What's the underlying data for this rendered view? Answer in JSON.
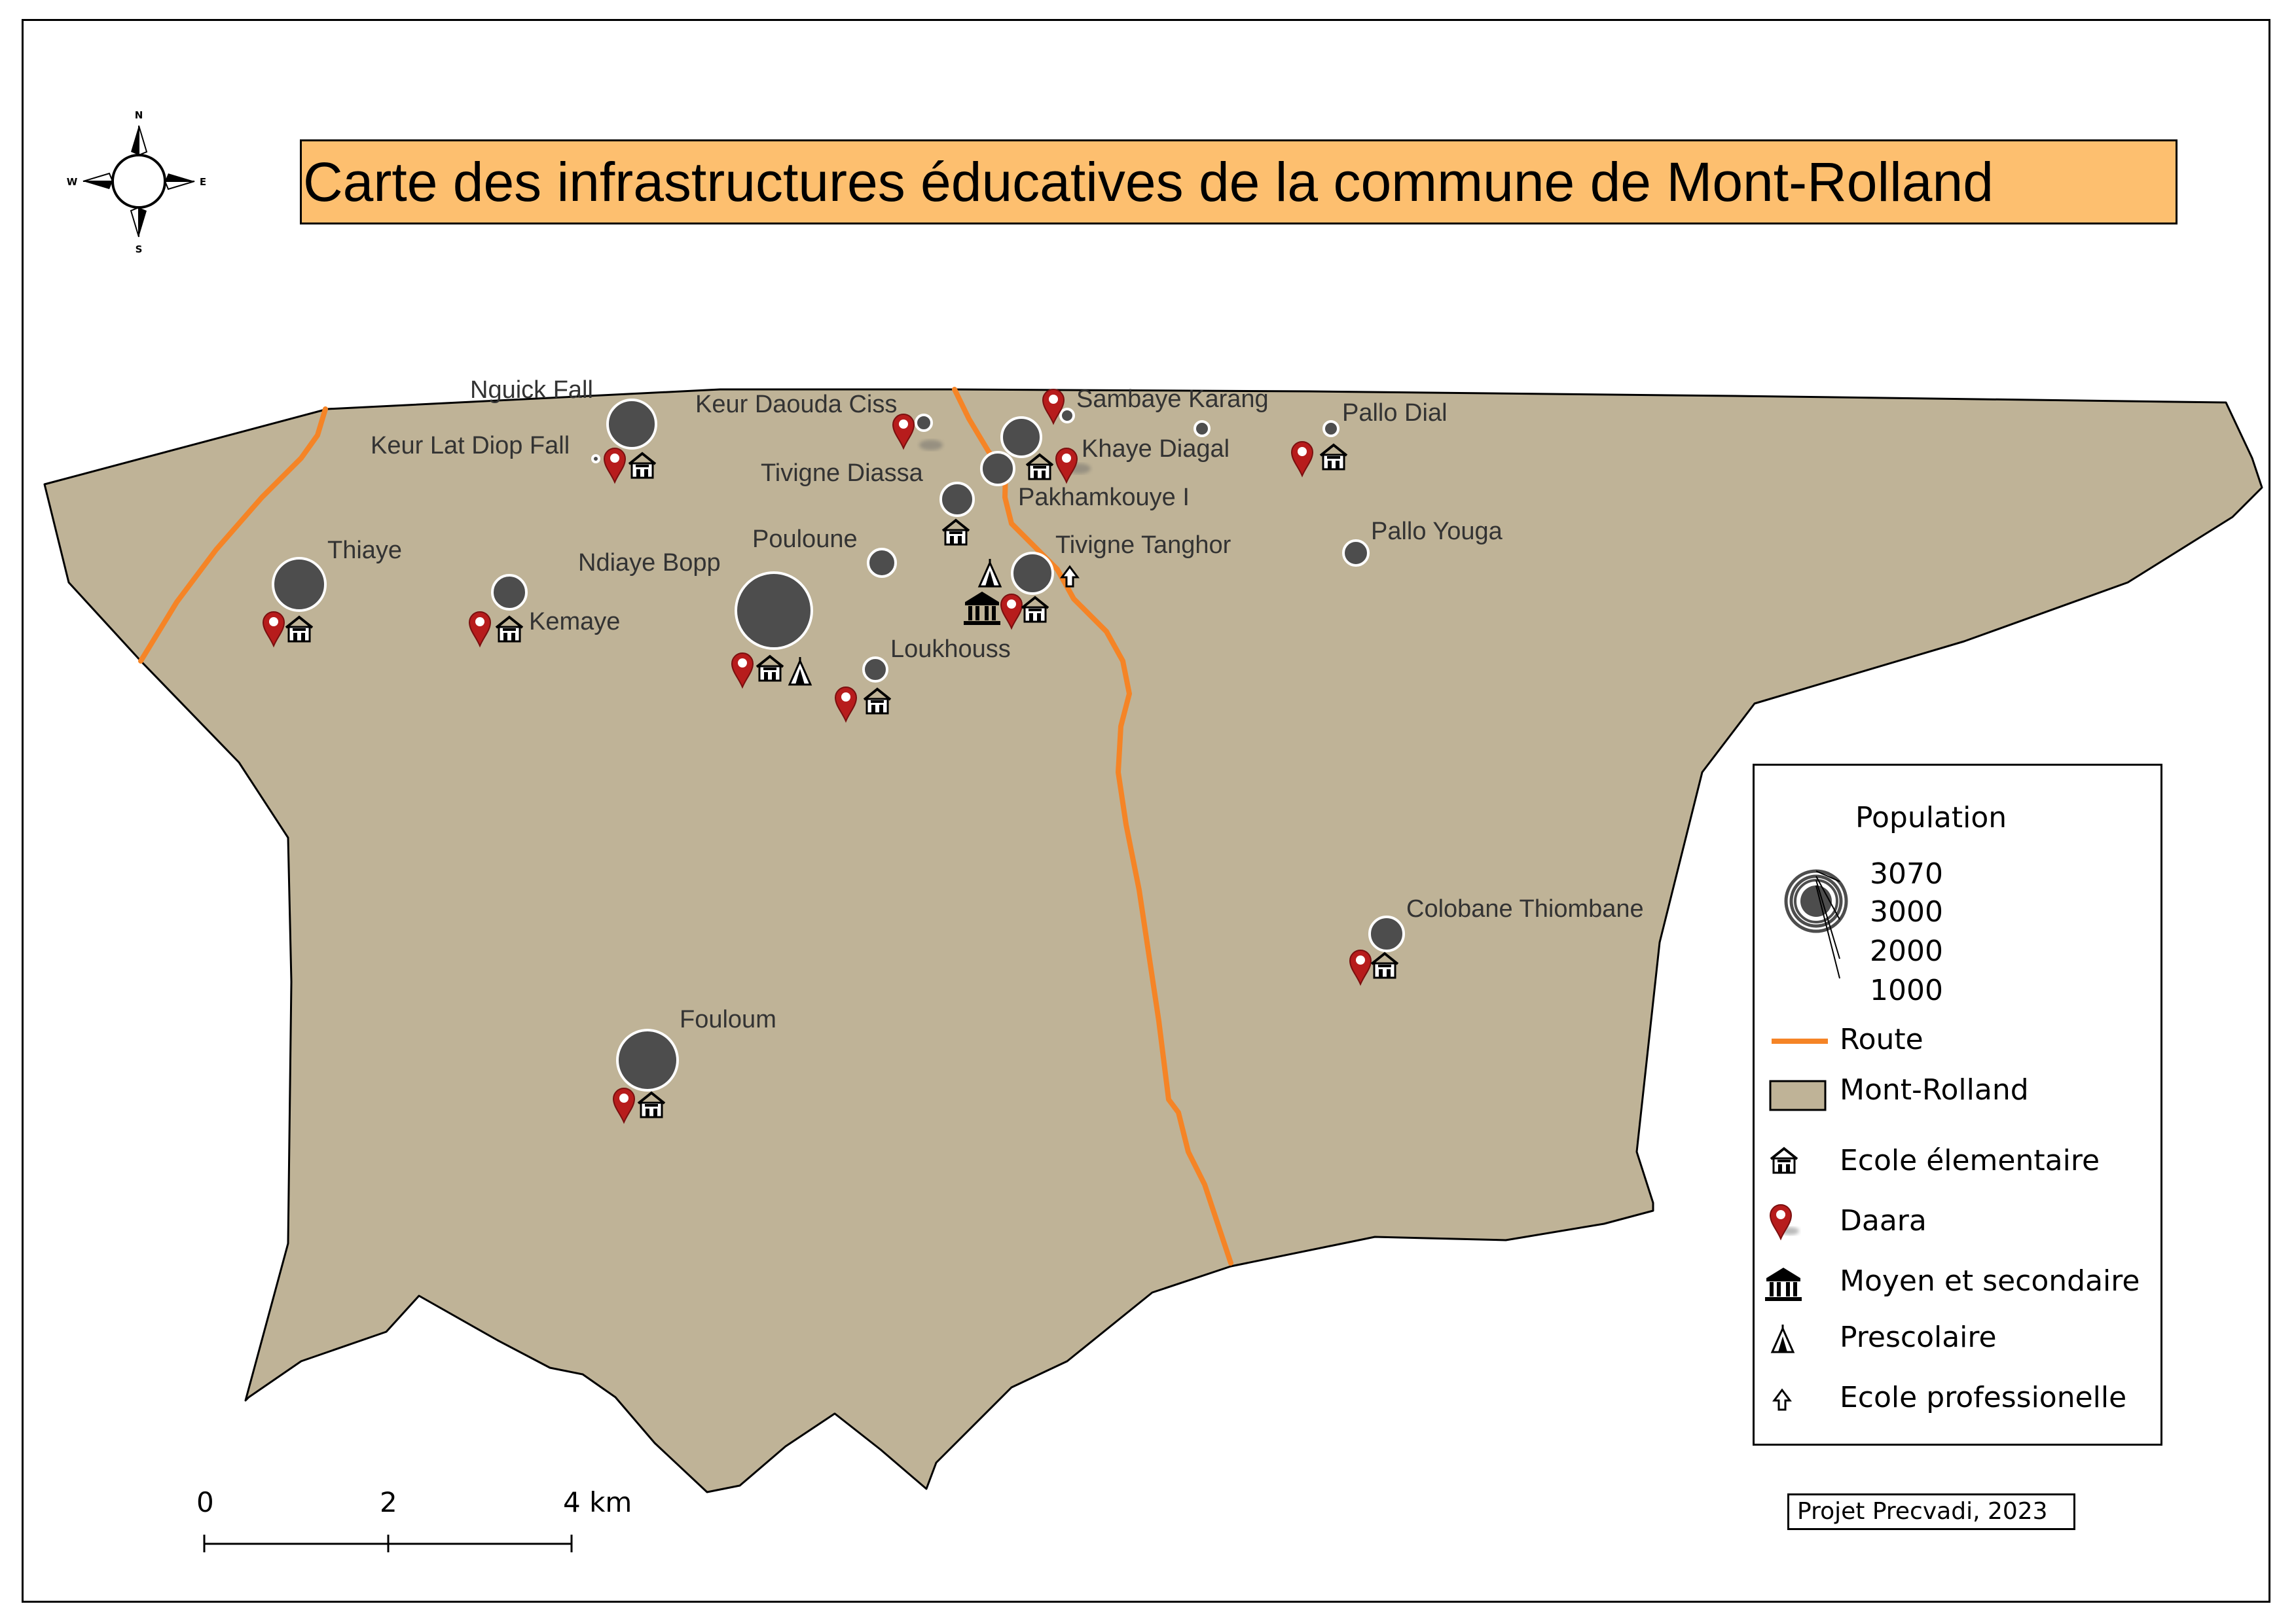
{
  "title": "Carte des infrastructures éducatives de la commune de Mont-Rolland",
  "credit": "Projet Precvadi, 2023",
  "compass": {
    "n": "N",
    "s": "S",
    "e": "E",
    "w": "W"
  },
  "scale_bar": {
    "labels": [
      "0",
      "2",
      "4 km"
    ]
  },
  "colors": {
    "commune_fill": "#bfb397",
    "route": "#f58426",
    "population_circle": "#4d4d4d",
    "daara_marker": "#b71c1c",
    "title_background": "#fdbf6f"
  },
  "legend": {
    "population_title": "Population",
    "population_classes": [
      "3070",
      "3000",
      "2000",
      "1000"
    ],
    "items": [
      {
        "icon": "route-line",
        "label": "Route"
      },
      {
        "icon": "commune-patch",
        "label": "Mont-Rolland"
      },
      {
        "icon": "school-building-icon",
        "label": "Ecole élementaire"
      },
      {
        "icon": "pin-marker-icon",
        "label": "Daara"
      },
      {
        "icon": "columns-building-icon",
        "label": "Moyen et secondaire"
      },
      {
        "icon": "triangle-tent-icon",
        "label": "Prescolaire"
      },
      {
        "icon": "up-arrow-icon",
        "label": "Ecole professionelle"
      }
    ]
  },
  "villages": [
    {
      "name": "Nguick Fall"
    },
    {
      "name": "Keur Lat Diop Fall"
    },
    {
      "name": "Keur Daouda Ciss"
    },
    {
      "name": "Sambaye Karang"
    },
    {
      "name": "Pallo Dial"
    },
    {
      "name": "Khaye Diagal"
    },
    {
      "name": "Tivigne Diassa"
    },
    {
      "name": "Pakhamkouye I"
    },
    {
      "name": "Thiaye"
    },
    {
      "name": "Pouloune"
    },
    {
      "name": "Ndiaye Bopp"
    },
    {
      "name": "Tivigne Tanghor"
    },
    {
      "name": "Pallo Youga"
    },
    {
      "name": "Kemaye"
    },
    {
      "name": "Loukhouss"
    },
    {
      "name": "Colobane Thiombane"
    },
    {
      "name": "Fouloum"
    }
  ]
}
